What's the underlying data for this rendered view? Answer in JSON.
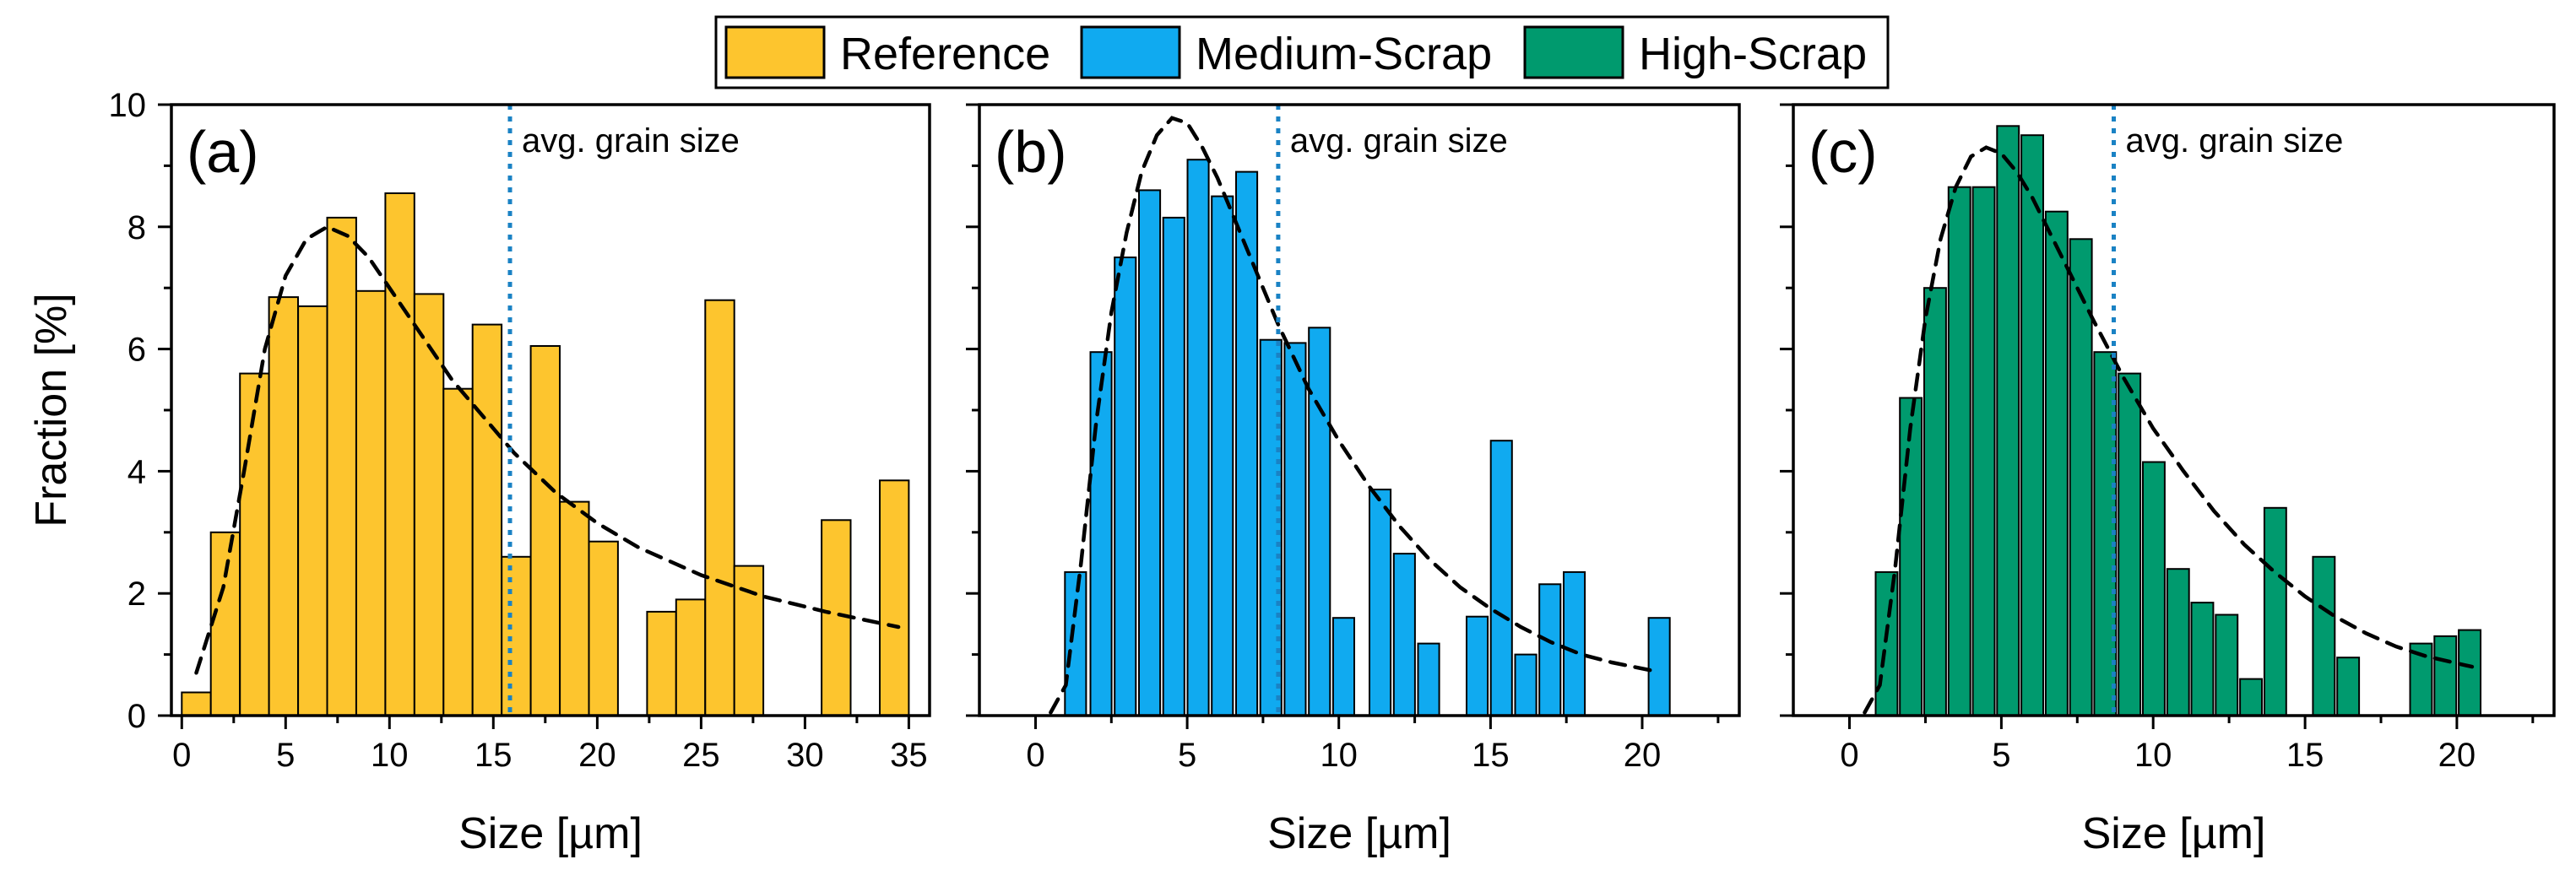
{
  "legend": [
    {
      "name": "Reference",
      "color": "#FDC52E"
    },
    {
      "name": "Medium-Scrap",
      "color": "#10AAF0"
    },
    {
      "name": "High-Scrap",
      "color": "#009A6E"
    }
  ],
  "chart_data": [
    {
      "type": "bar",
      "panel_label": "(a)",
      "series_name": "Reference",
      "color": "#FDC52E",
      "xlabel": "Size [µm]",
      "ylabel": "Fraction [%]",
      "xlim": [
        -0.5,
        36.0
      ],
      "ylim": [
        0,
        10
      ],
      "x_ticks": [
        0,
        5,
        10,
        15,
        20,
        25,
        30,
        35
      ],
      "y_ticks": [
        0,
        2,
        4,
        6,
        8,
        10
      ],
      "bin_width": 1.4,
      "x": [
        0.7,
        2.1,
        3.5,
        4.9,
        6.3,
        7.7,
        9.1,
        10.5,
        11.9,
        13.3,
        14.7,
        16.1,
        17.5,
        18.9,
        20.3,
        23.1,
        24.5,
        25.9,
        27.3,
        31.5,
        34.3
      ],
      "values": [
        0.38,
        3.0,
        5.6,
        6.85,
        6.7,
        8.15,
        6.95,
        8.55,
        6.9,
        5.35,
        6.4,
        2.6,
        6.05,
        3.5,
        2.85,
        1.7,
        1.9,
        6.8,
        2.45,
        3.2,
        3.85
      ],
      "avg_grain_size": 15.8,
      "avg_label": "avg. grain size",
      "fit_curve": [
        [
          0.7,
          0.7
        ],
        [
          2,
          2.1
        ],
        [
          3,
          4.0
        ],
        [
          4,
          6.0
        ],
        [
          5,
          7.2
        ],
        [
          6,
          7.8
        ],
        [
          7,
          8.0
        ],
        [
          8,
          7.85
        ],
        [
          9,
          7.5
        ],
        [
          10,
          7.0
        ],
        [
          11,
          6.5
        ],
        [
          12,
          6.0
        ],
        [
          13,
          5.5
        ],
        [
          14,
          5.1
        ],
        [
          15,
          4.7
        ],
        [
          16,
          4.3
        ],
        [
          18,
          3.65
        ],
        [
          20,
          3.15
        ],
        [
          22,
          2.75
        ],
        [
          25,
          2.3
        ],
        [
          28,
          1.95
        ],
        [
          31,
          1.7
        ],
        [
          34.5,
          1.45
        ]
      ]
    },
    {
      "type": "bar",
      "panel_label": "(b)",
      "series_name": "Medium-Scrap",
      "color": "#10AAF0",
      "xlabel": "Size [µm]",
      "ylabel": "",
      "xlim": [
        -1.85,
        23.2
      ],
      "ylim": [
        0,
        10
      ],
      "x_ticks": [
        0,
        5,
        10,
        15,
        20
      ],
      "y_ticks": [
        0,
        2,
        4,
        6,
        8,
        10
      ],
      "bin_width": 0.7,
      "x": [
        1.32,
        2.16,
        2.96,
        3.76,
        4.56,
        5.36,
        6.16,
        6.96,
        7.76,
        8.56,
        9.36,
        10.16,
        11.36,
        12.16,
        12.96,
        14.56,
        15.36,
        16.16,
        16.96,
        17.76,
        20.56
      ],
      "values": [
        2.35,
        5.95,
        7.5,
        8.6,
        8.15,
        9.1,
        8.5,
        8.9,
        6.15,
        6.1,
        6.35,
        1.6,
        3.7,
        2.65,
        1.18,
        1.62,
        4.5,
        1.0,
        2.15,
        2.35,
        1.6
      ],
      "avg_grain_size": 8.0,
      "avg_label": "avg. grain size",
      "fit_curve": [
        [
          0.5,
          0.05
        ],
        [
          1,
          0.5
        ],
        [
          1.5,
          2.5
        ],
        [
          2,
          4.8
        ],
        [
          2.5,
          6.6
        ],
        [
          3,
          7.9
        ],
        [
          3.5,
          8.9
        ],
        [
          4,
          9.5
        ],
        [
          4.5,
          9.78
        ],
        [
          5,
          9.7
        ],
        [
          5.5,
          9.3
        ],
        [
          6,
          8.8
        ],
        [
          6.5,
          8.2
        ],
        [
          7,
          7.6
        ],
        [
          7.5,
          7.0
        ],
        [
          8,
          6.4
        ],
        [
          9,
          5.35
        ],
        [
          10,
          4.5
        ],
        [
          11,
          3.75
        ],
        [
          12,
          3.1
        ],
        [
          13,
          2.55
        ],
        [
          14,
          2.1
        ],
        [
          15,
          1.75
        ],
        [
          16,
          1.45
        ],
        [
          17,
          1.2
        ],
        [
          18,
          1.0
        ],
        [
          19,
          0.87
        ],
        [
          20.5,
          0.72
        ]
      ]
    },
    {
      "type": "bar",
      "panel_label": "(c)",
      "series_name": "High-Scrap",
      "color": "#009A6E",
      "xlabel": "Size [µm]",
      "ylabel": "",
      "xlim": [
        -1.85,
        23.2
      ],
      "ylim": [
        0,
        10
      ],
      "x_ticks": [
        0,
        5,
        10,
        15,
        20
      ],
      "y_ticks": [
        0,
        2,
        4,
        6,
        8,
        10
      ],
      "bin_width": 0.72,
      "x": [
        1.22,
        2.02,
        2.82,
        3.62,
        4.42,
        5.22,
        6.02,
        6.82,
        7.62,
        8.42,
        9.22,
        10.02,
        10.82,
        11.62,
        12.42,
        13.22,
        14.02,
        14.82,
        15.62,
        16.42,
        17.22,
        18.82,
        19.62,
        20.42
      ],
      "values": [
        2.35,
        5.2,
        7.0,
        8.65,
        8.65,
        9.65,
        9.5,
        8.25,
        7.8,
        5.95,
        5.6,
        4.15,
        2.4,
        1.85,
        1.65,
        0.6,
        3.4,
        0.0,
        2.6,
        0.95,
        0.0,
        1.18,
        1.3,
        1.4
      ],
      "avg_grain_size": 8.7,
      "avg_label": "avg. grain size",
      "fit_curve": [
        [
          0.5,
          0.05
        ],
        [
          1,
          0.5
        ],
        [
          1.5,
          2.4
        ],
        [
          2,
          4.7
        ],
        [
          2.5,
          6.5
        ],
        [
          3,
          7.8
        ],
        [
          3.5,
          8.65
        ],
        [
          4,
          9.15
        ],
        [
          4.5,
          9.3
        ],
        [
          5,
          9.2
        ],
        [
          5.5,
          8.9
        ],
        [
          6,
          8.5
        ],
        [
          6.5,
          8.0
        ],
        [
          7,
          7.5
        ],
        [
          7.5,
          7.0
        ],
        [
          8,
          6.5
        ],
        [
          9,
          5.55
        ],
        [
          10,
          4.7
        ],
        [
          11,
          4.0
        ],
        [
          12,
          3.35
        ],
        [
          13,
          2.8
        ],
        [
          14,
          2.35
        ],
        [
          15,
          1.95
        ],
        [
          16,
          1.62
        ],
        [
          17,
          1.35
        ],
        [
          18,
          1.13
        ],
        [
          19,
          0.97
        ],
        [
          20.5,
          0.8
        ]
      ]
    }
  ]
}
